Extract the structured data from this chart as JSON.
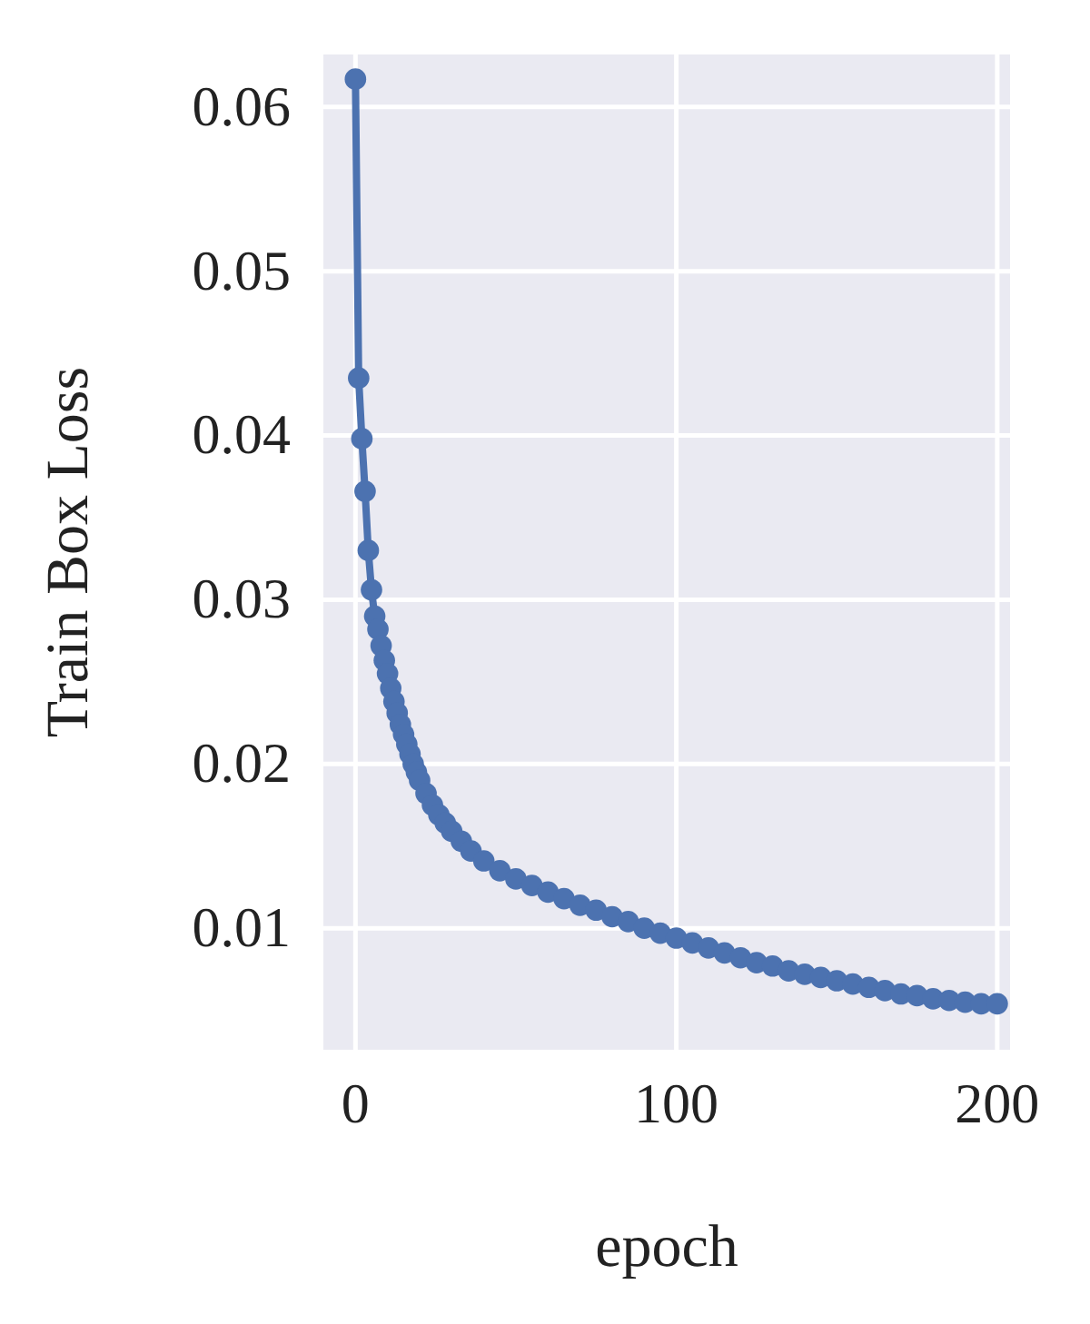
{
  "chart_data": {
    "type": "line",
    "xlabel": "epoch",
    "ylabel": "Train Box Loss",
    "xlim": [
      -10,
      204
    ],
    "ylim": [
      0.0026,
      0.0632
    ],
    "xticks": [
      0,
      100,
      200
    ],
    "yticks": [
      0.01,
      0.02,
      0.03,
      0.04,
      0.05,
      0.06
    ],
    "grid": true,
    "marker": "circle",
    "line_style": "solid",
    "series": [
      {
        "color": "#4c72b0",
        "x": [
          0,
          1,
          2,
          3,
          4,
          5,
          6,
          7,
          8,
          9,
          10,
          11,
          12,
          13,
          14,
          15,
          16,
          17,
          18,
          19,
          20,
          22,
          24,
          26,
          28,
          30,
          33,
          36,
          40,
          45,
          50,
          55,
          60,
          65,
          70,
          75,
          80,
          85,
          90,
          95,
          100,
          105,
          110,
          115,
          120,
          125,
          130,
          135,
          140,
          145,
          150,
          155,
          160,
          165,
          170,
          175,
          180,
          185,
          190,
          195,
          200
        ],
        "values": [
          0.0617,
          0.0435,
          0.0398,
          0.0366,
          0.033,
          0.0306,
          0.029,
          0.0282,
          0.0272,
          0.0263,
          0.0255,
          0.0246,
          0.0238,
          0.0231,
          0.0224,
          0.0218,
          0.0212,
          0.0206,
          0.02,
          0.0195,
          0.019,
          0.0182,
          0.0175,
          0.0169,
          0.0164,
          0.0159,
          0.0153,
          0.0147,
          0.0141,
          0.0135,
          0.013,
          0.0126,
          0.0122,
          0.0118,
          0.0114,
          0.0111,
          0.0107,
          0.0104,
          0.01,
          0.0097,
          0.0094,
          0.0091,
          0.0088,
          0.0085,
          0.0082,
          0.0079,
          0.0077,
          0.0074,
          0.0072,
          0.007,
          0.0068,
          0.0066,
          0.0064,
          0.0062,
          0.006,
          0.0059,
          0.0057,
          0.0056,
          0.0055,
          0.0054,
          0.0054
        ]
      }
    ]
  }
}
